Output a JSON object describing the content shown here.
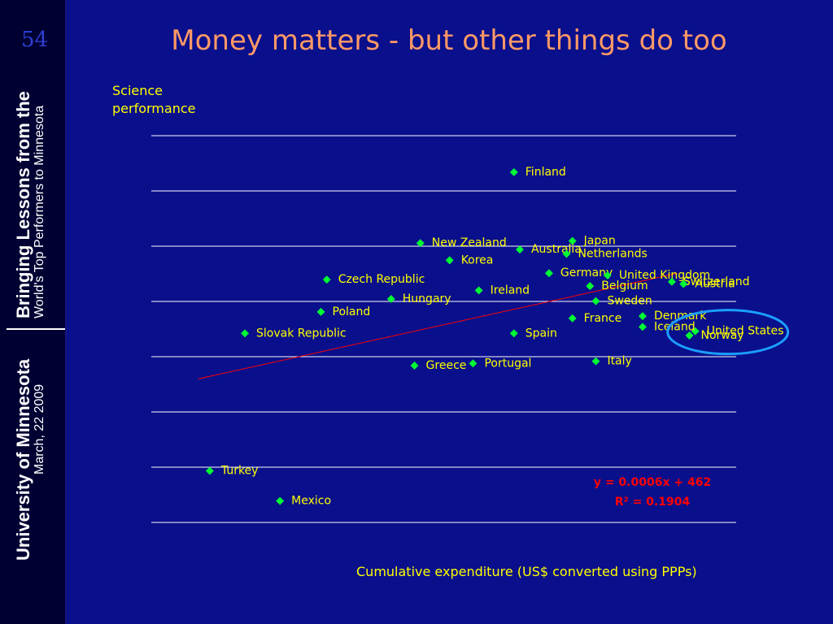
{
  "slide": {
    "number": "54",
    "title": "Money matters - but other things do too",
    "sidebar": {
      "line1_bold": "Bringing Lessons from the",
      "line1_sub": "World's Top Performers to Minnesota",
      "line2_bold": "University of Minnesota",
      "line2_sub": "March, 22 2009"
    }
  },
  "chart_data": {
    "type": "scatter",
    "ylabel": "Science performance",
    "xlabel": "Cumulative expenditure (US$ converted using PPPs)",
    "grid": true,
    "x_ticks_shown": false,
    "y_ticks_shown": false,
    "xlim": [
      0,
      100000
    ],
    "ylim": [
      400,
      580
    ],
    "trendline": {
      "equation": "y = 0.0006x + 462",
      "r2": "R² = 0.1904",
      "color": "#ff0000"
    },
    "highlight": {
      "label": "United States",
      "color": "#1a9fff"
    },
    "points": [
      {
        "country": "Finland",
        "x": 62000,
        "y": 563
      },
      {
        "country": "Japan",
        "x": 72000,
        "y": 531
      },
      {
        "country": "Australia",
        "x": 63000,
        "y": 527
      },
      {
        "country": "New Zealand",
        "x": 46000,
        "y": 530
      },
      {
        "country": "Netherlands",
        "x": 71000,
        "y": 525
      },
      {
        "country": "Korea",
        "x": 51000,
        "y": 522
      },
      {
        "country": "Germany",
        "x": 68000,
        "y": 516
      },
      {
        "country": "Czech Republic",
        "x": 30000,
        "y": 513
      },
      {
        "country": "United Kingdom",
        "x": 78000,
        "y": 515
      },
      {
        "country": "Switzerland",
        "x": 89000,
        "y": 512
      },
      {
        "country": "Austria",
        "x": 91000,
        "y": 511
      },
      {
        "country": "Belgium",
        "x": 75000,
        "y": 510
      },
      {
        "country": "Ireland",
        "x": 56000,
        "y": 508
      },
      {
        "country": "Hungary",
        "x": 41000,
        "y": 504
      },
      {
        "country": "Sweden",
        "x": 76000,
        "y": 503
      },
      {
        "country": "Denmark",
        "x": 84000,
        "y": 496
      },
      {
        "country": "United States",
        "x": 93000,
        "y": 489
      },
      {
        "country": "France",
        "x": 72000,
        "y": 495
      },
      {
        "country": "Poland",
        "x": 29000,
        "y": 498
      },
      {
        "country": "Slovak Republic",
        "x": 16000,
        "y": 488
      },
      {
        "country": "Spain",
        "x": 62000,
        "y": 488
      },
      {
        "country": "Iceland",
        "x": 84000,
        "y": 491
      },
      {
        "country": "Norway",
        "x": 92000,
        "y": 487
      },
      {
        "country": "Italy",
        "x": 76000,
        "y": 475
      },
      {
        "country": "Portugal",
        "x": 55000,
        "y": 474
      },
      {
        "country": "Greece",
        "x": 45000,
        "y": 473
      },
      {
        "country": "Turkey",
        "x": 10000,
        "y": 424
      },
      {
        "country": "Mexico",
        "x": 22000,
        "y": 410
      }
    ]
  }
}
